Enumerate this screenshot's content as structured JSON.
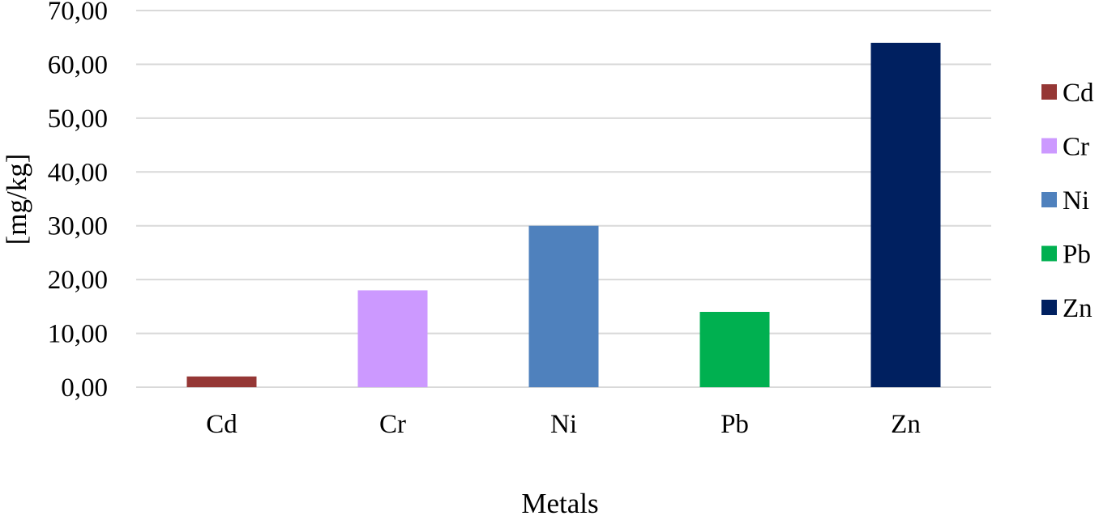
{
  "chart_data": {
    "type": "bar",
    "categories": [
      "Cd",
      "Cr",
      "Ni",
      "Pb",
      "Zn"
    ],
    "values": [
      2.0,
      18.0,
      30.0,
      14.0,
      64.0
    ],
    "colors": [
      "#953735",
      "#cc99ff",
      "#4f81bd",
      "#00b050",
      "#002060"
    ],
    "xlabel": "Metals",
    "ylabel": "[mg/kg]",
    "ylim": [
      0,
      70
    ],
    "yticks": [
      "0,00",
      "10,00",
      "20,00",
      "30,00",
      "40,00",
      "50,00",
      "60,00",
      "70,00"
    ],
    "grid": true,
    "legend": {
      "position": "right",
      "entries": [
        "Cd",
        "Cr",
        "Ni",
        "Pb",
        "Zn"
      ]
    }
  }
}
